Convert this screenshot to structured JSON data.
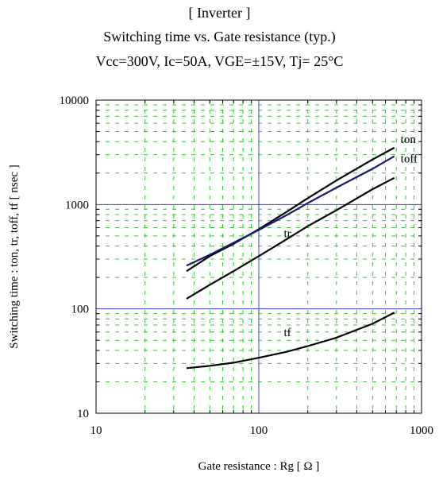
{
  "titles": {
    "line1": "[ Inverter ]",
    "line2": "Switching time  vs.  Gate resistance  (typ.)",
    "line3": "Vcc=300V, Ic=50A, VGE=±15V, Tj= 25°C"
  },
  "chart_data": {
    "type": "line",
    "xlabel": "Gate resistance : Rg [ Ω ]",
    "ylabel": "Switching time : ton, tr, toff, tf [ nsec ]",
    "xscale": "log",
    "yscale": "log",
    "xlim": [
      10,
      1000
    ],
    "ylim": [
      10,
      10000
    ],
    "xticks": [
      "10",
      "100",
      "1000"
    ],
    "yticks": [
      "10",
      "100",
      "1000",
      "10000"
    ],
    "grid": "major solid blue, minor dashed green",
    "colors": {
      "major_grid": "#3f3fd8",
      "minor_grid": "#2ecc2e",
      "curve": "#000000",
      "toff_curve": "#1a1a6e"
    },
    "series": [
      {
        "name": "ton",
        "x": [
          36,
          50,
          70,
          100,
          150,
          200,
          300,
          500,
          680
        ],
        "y": [
          230,
          320,
          420,
          580,
          860,
          1150,
          1700,
          2700,
          3500
        ]
      },
      {
        "name": "toff",
        "x": [
          36,
          50,
          70,
          100,
          150,
          200,
          300,
          500,
          680
        ],
        "y": [
          260,
          330,
          430,
          570,
          800,
          1030,
          1450,
          2200,
          2900
        ]
      },
      {
        "name": "tr",
        "x": [
          36,
          50,
          70,
          100,
          150,
          200,
          300,
          500,
          680
        ],
        "y": [
          125,
          170,
          230,
          320,
          470,
          620,
          880,
          1400,
          1800
        ]
      },
      {
        "name": "tf",
        "x": [
          36,
          50,
          70,
          100,
          150,
          200,
          300,
          500,
          680
        ],
        "y": [
          27,
          28.5,
          30.5,
          34,
          39,
          44,
          53,
          72,
          92
        ]
      }
    ]
  }
}
